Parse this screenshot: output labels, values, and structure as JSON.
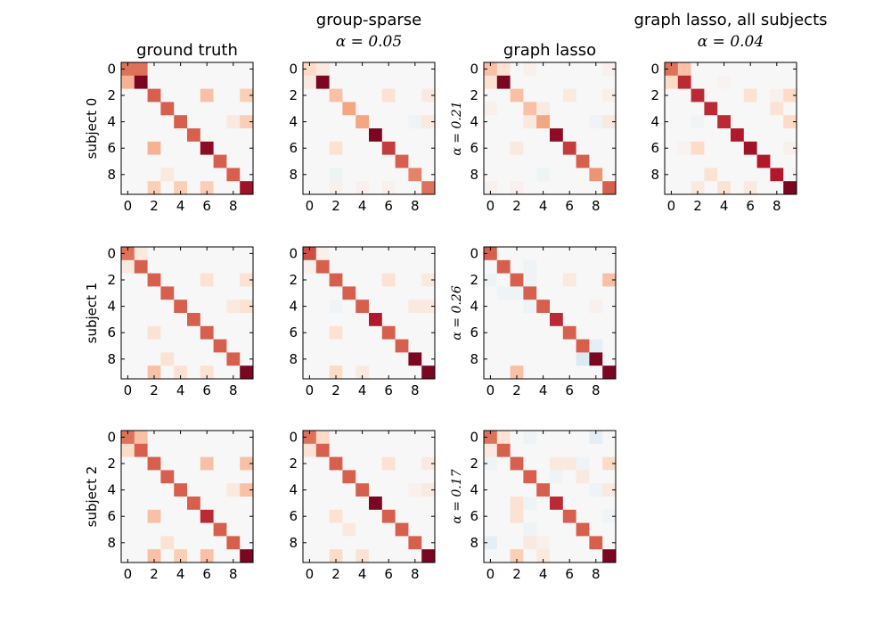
{
  "colors": {
    "neg": "#2166ac",
    "zero": "#f7f7f7",
    "pos": "#67001f"
  },
  "chart_data": [
    {
      "type": "heatmap",
      "title": "ground truth",
      "title2": "",
      "ylabel": "subject 0",
      "xticks": [
        "0",
        "2",
        "4",
        "6",
        "8"
      ],
      "yticks": [
        "0",
        "2",
        "4",
        "6",
        "8"
      ],
      "vmin": -1,
      "vmax": 1,
      "matrix": [
        [
          0.55,
          0.55,
          0,
          0,
          0,
          0,
          0,
          0,
          0,
          0
        ],
        [
          0.35,
          0.95,
          0,
          0,
          0,
          0,
          0,
          0,
          0,
          0
        ],
        [
          0,
          0,
          0.6,
          0,
          0,
          0,
          0.3,
          0,
          0,
          0.25
        ],
        [
          0,
          0,
          0,
          0.6,
          0,
          0,
          0,
          0,
          0,
          0
        ],
        [
          0,
          0,
          0,
          0,
          0.6,
          0,
          0,
          0,
          0.1,
          0.25
        ],
        [
          0,
          0,
          0,
          0,
          0,
          0.6,
          0,
          0,
          0,
          0
        ],
        [
          0,
          0,
          0.35,
          0,
          0,
          0,
          0.9,
          0,
          0,
          0
        ],
        [
          0,
          0,
          0,
          0,
          0,
          0,
          0,
          0.6,
          0,
          0
        ],
        [
          0,
          0,
          0,
          0.1,
          0,
          0,
          0,
          0,
          0.6,
          0
        ],
        [
          0,
          0,
          0.25,
          0,
          0.25,
          0,
          0.25,
          0,
          0,
          0.85
        ]
      ]
    },
    {
      "type": "heatmap",
      "title": "group-sparse",
      "title2": "α = 0.05",
      "ylabel": "",
      "xticks": [
        "0",
        "2",
        "4",
        "6",
        "8"
      ],
      "yticks": [
        "0",
        "2",
        "4",
        "6",
        "8"
      ],
      "vmin": -1,
      "vmax": 1,
      "matrix": [
        [
          0.2,
          0.1,
          0,
          0,
          0,
          0,
          0,
          0,
          0,
          0
        ],
        [
          0.1,
          0.95,
          0,
          0,
          0,
          0,
          0,
          0,
          0,
          0
        ],
        [
          0,
          0,
          0.3,
          0,
          0,
          0,
          0.15,
          0,
          0,
          0.1
        ],
        [
          0,
          0,
          0,
          0.4,
          0,
          0,
          0,
          0,
          0,
          0
        ],
        [
          0,
          0,
          0,
          0,
          0.4,
          0,
          0,
          0,
          -0.05,
          0.1
        ],
        [
          0,
          0,
          0,
          0,
          0,
          0.95,
          0,
          0,
          0,
          0
        ],
        [
          0,
          0,
          0.15,
          0,
          0,
          0,
          0.7,
          0,
          0,
          0
        ],
        [
          0,
          0,
          0,
          0,
          0,
          0,
          0,
          0.6,
          0,
          0
        ],
        [
          0,
          0,
          -0.05,
          0,
          0,
          0,
          0,
          0,
          0.5,
          0
        ],
        [
          0,
          0,
          0.05,
          0,
          0.05,
          0,
          0.05,
          0,
          0,
          0.55
        ]
      ]
    },
    {
      "type": "heatmap",
      "title": "graph lasso",
      "title2": "",
      "ylabel": "α = 0.21",
      "xticks": [
        "0",
        "2",
        "4",
        "6",
        "8"
      ],
      "yticks": [
        "0",
        "2",
        "4",
        "6",
        "8"
      ],
      "vmin": -1,
      "vmax": 1,
      "matrix": [
        [
          0.3,
          0.15,
          0,
          0.05,
          0,
          0,
          0,
          0,
          0,
          0.05
        ],
        [
          0.15,
          0.95,
          0,
          0,
          0,
          0,
          0,
          0,
          0,
          0
        ],
        [
          0,
          0,
          0.3,
          0,
          0,
          0,
          0.1,
          0,
          0,
          0.05
        ],
        [
          0.05,
          0,
          0,
          0.3,
          0.1,
          0,
          0,
          0,
          0,
          0
        ],
        [
          0,
          0,
          0,
          0.1,
          0.4,
          0,
          0,
          0,
          -0.05,
          0.1
        ],
        [
          0,
          0,
          0,
          0,
          0,
          0.9,
          0,
          0,
          0,
          0
        ],
        [
          0,
          0,
          0.1,
          0,
          0,
          0,
          0.7,
          0,
          0,
          0
        ],
        [
          0,
          0,
          0,
          0,
          0,
          0,
          0,
          0.6,
          0,
          0
        ],
        [
          0,
          0,
          0,
          0,
          -0.05,
          0,
          0,
          0,
          0.45,
          0
        ],
        [
          0.05,
          0,
          0.05,
          0,
          0,
          0,
          0,
          0,
          0,
          0.6
        ]
      ]
    },
    {
      "type": "heatmap",
      "title": "graph lasso, all subjects",
      "title2": "α = 0.04",
      "ylabel": "",
      "xticks": [
        "0",
        "2",
        "4",
        "6",
        "8"
      ],
      "yticks": [
        "0",
        "2",
        "4",
        "6",
        "8"
      ],
      "vmin": -1,
      "vmax": 1,
      "matrix": [
        [
          0.55,
          0.3,
          0,
          0,
          0,
          0,
          0,
          0,
          0,
          0
        ],
        [
          0.2,
          0.75,
          0,
          0,
          0.03,
          0,
          0,
          0,
          0,
          0
        ],
        [
          0,
          0,
          0.75,
          0,
          0,
          0,
          0.15,
          0,
          0.05,
          0.2
        ],
        [
          0,
          0,
          0,
          0.75,
          0,
          0,
          0,
          0,
          0.15,
          0
        ],
        [
          0,
          0,
          -0.03,
          0,
          0.75,
          0,
          0,
          0,
          0,
          0.2
        ],
        [
          0,
          0,
          0,
          0,
          0,
          0.8,
          0,
          0,
          0,
          0
        ],
        [
          0,
          0.03,
          0.2,
          0,
          0,
          0,
          0.85,
          0,
          0,
          0.05
        ],
        [
          0,
          0,
          0,
          0,
          0,
          0,
          0,
          0.8,
          0,
          0
        ],
        [
          0,
          0,
          0,
          0.15,
          0,
          0,
          0,
          0,
          0.8,
          0
        ],
        [
          0,
          0,
          0.1,
          0,
          0.15,
          0,
          0.1,
          0,
          0,
          0.95
        ]
      ]
    },
    {
      "type": "heatmap",
      "title": "",
      "title2": "",
      "ylabel": "subject 1",
      "xticks": [
        "0",
        "2",
        "4",
        "6",
        "8"
      ],
      "yticks": [
        "0",
        "2",
        "4",
        "6",
        "8"
      ],
      "vmin": -1,
      "vmax": 1,
      "matrix": [
        [
          0.55,
          0.1,
          0,
          0,
          0,
          0,
          0,
          0,
          0,
          0
        ],
        [
          0.1,
          0.6,
          0,
          0,
          0,
          0,
          0,
          0,
          0,
          0
        ],
        [
          0,
          0,
          0.6,
          0,
          0,
          0,
          0.15,
          0,
          0,
          0.15
        ],
        [
          0,
          0,
          0,
          0.6,
          0,
          0,
          0,
          0,
          0,
          0
        ],
        [
          0,
          0,
          0,
          0,
          0.6,
          0,
          0,
          0,
          0.1,
          0.15
        ],
        [
          0,
          0,
          0,
          0,
          0,
          0.6,
          0,
          0,
          0,
          0
        ],
        [
          0,
          0,
          0.15,
          0,
          0,
          0,
          0.6,
          0,
          0,
          0
        ],
        [
          0,
          0,
          0,
          0,
          0,
          0,
          0,
          0.6,
          0,
          0
        ],
        [
          0,
          0,
          0,
          0.15,
          0,
          0,
          0,
          0,
          0.6,
          0
        ],
        [
          0,
          0,
          0.3,
          0,
          0.15,
          0,
          0.15,
          0,
          0,
          0.95
        ]
      ]
    },
    {
      "type": "heatmap",
      "title": "",
      "title2": "",
      "ylabel": "",
      "xticks": [
        "0",
        "2",
        "4",
        "6",
        "8"
      ],
      "yticks": [
        "0",
        "2",
        "4",
        "6",
        "8"
      ],
      "vmin": -1,
      "vmax": 1,
      "matrix": [
        [
          0.65,
          0.05,
          0,
          0,
          0,
          0,
          0,
          0,
          0,
          0
        ],
        [
          0.05,
          0.6,
          0,
          0,
          0,
          0,
          0,
          0,
          0,
          0
        ],
        [
          0,
          0,
          0.6,
          0,
          0,
          0,
          0.15,
          0,
          0,
          0.1
        ],
        [
          0,
          0,
          0,
          0.6,
          0,
          0,
          0,
          0,
          0,
          0
        ],
        [
          0,
          0,
          -0.03,
          0,
          0.6,
          0,
          0,
          0,
          0.1,
          0.1
        ],
        [
          0,
          0,
          0,
          0,
          0,
          0.8,
          0,
          0,
          0,
          0
        ],
        [
          0,
          0,
          0.15,
          0,
          0,
          0,
          0.6,
          0,
          0,
          0
        ],
        [
          0,
          0,
          0,
          0,
          0,
          0,
          0,
          0.6,
          0,
          0
        ],
        [
          0,
          0,
          0,
          0,
          0,
          0,
          0,
          0,
          0.95,
          0
        ],
        [
          0,
          0,
          0.2,
          0,
          0.1,
          0,
          0,
          0,
          0,
          0.95
        ]
      ]
    },
    {
      "type": "heatmap",
      "title": "",
      "title2": "",
      "ylabel": "α = 0.26",
      "xticks": [
        "0",
        "2",
        "4",
        "6",
        "8"
      ],
      "yticks": [
        "0",
        "2",
        "4",
        "6",
        "8"
      ],
      "vmin": -1,
      "vmax": 1,
      "matrix": [
        [
          0.6,
          0,
          0,
          0,
          0,
          0,
          0,
          0,
          0,
          0
        ],
        [
          0,
          0.6,
          0,
          -0.05,
          0,
          0,
          0,
          0,
          0,
          0
        ],
        [
          -0.05,
          0,
          0.6,
          -0.05,
          0,
          0,
          0.1,
          0,
          0,
          0.3
        ],
        [
          0,
          -0.05,
          -0.05,
          0.6,
          0,
          0,
          0,
          0,
          0,
          0
        ],
        [
          0,
          0,
          0,
          -0.05,
          0.6,
          0,
          0,
          0,
          0.05,
          0
        ],
        [
          0,
          0,
          0,
          0,
          0,
          0.75,
          0,
          0,
          0,
          0
        ],
        [
          0,
          0,
          0,
          0,
          0,
          0,
          0.6,
          0,
          0,
          0
        ],
        [
          0,
          0,
          0,
          0,
          0,
          0,
          0,
          0.6,
          -0.1,
          0
        ],
        [
          0,
          0,
          0,
          0,
          0,
          0,
          0,
          -0.15,
          0.95,
          0
        ],
        [
          0,
          0,
          0.3,
          0,
          0,
          0,
          0,
          0,
          0,
          0.95
        ]
      ]
    },
    {
      "type": "heatmap",
      "title": "",
      "title2": "",
      "ylabel": "subject 2",
      "xticks": [
        "0",
        "2",
        "4",
        "6",
        "8"
      ],
      "yticks": [
        "0",
        "2",
        "4",
        "6",
        "8"
      ],
      "vmin": -1,
      "vmax": 1,
      "matrix": [
        [
          0.55,
          0.3,
          0,
          0,
          0,
          0,
          0,
          0,
          0,
          0
        ],
        [
          0.2,
          0.6,
          0,
          0,
          0,
          0,
          0,
          0,
          0,
          0
        ],
        [
          0,
          0,
          0.6,
          0,
          0,
          0,
          0.3,
          0,
          0,
          0.3
        ],
        [
          0,
          0,
          0,
          0.6,
          0,
          0,
          0,
          0,
          0,
          0
        ],
        [
          0,
          0,
          0,
          0,
          0.6,
          0,
          0,
          0,
          0.1,
          0.3
        ],
        [
          0,
          0,
          0,
          0,
          0,
          0.6,
          0,
          0,
          0,
          0
        ],
        [
          0,
          0,
          0.3,
          0,
          0,
          0,
          0.75,
          0,
          0,
          0
        ],
        [
          0,
          0,
          0,
          0,
          0,
          0,
          0,
          0.6,
          0,
          0
        ],
        [
          0,
          0,
          0,
          0.15,
          0,
          0,
          0,
          0,
          0.6,
          0
        ],
        [
          0,
          0,
          0.3,
          0,
          0.25,
          0,
          0.3,
          0,
          0,
          0.95
        ]
      ]
    },
    {
      "type": "heatmap",
      "title": "",
      "title2": "",
      "ylabel": "",
      "xticks": [
        "0",
        "2",
        "4",
        "6",
        "8"
      ],
      "yticks": [
        "0",
        "2",
        "4",
        "6",
        "8"
      ],
      "vmin": -1,
      "vmax": 1,
      "matrix": [
        [
          0.55,
          0.2,
          0,
          0,
          0,
          0,
          0,
          0,
          0,
          0
        ],
        [
          0.15,
          0.6,
          0,
          0,
          0,
          0,
          0,
          0,
          0,
          0
        ],
        [
          0,
          0,
          0.6,
          0,
          0,
          0,
          0.15,
          0,
          0,
          0.1
        ],
        [
          0,
          0,
          0,
          0.6,
          0,
          0,
          0,
          0,
          0,
          0
        ],
        [
          0,
          0,
          0,
          0,
          0.6,
          0,
          0,
          0,
          0.05,
          0.1
        ],
        [
          0,
          0,
          0,
          0,
          0,
          0.95,
          0,
          0,
          0,
          0
        ],
        [
          0,
          0,
          0.15,
          0,
          0,
          0,
          0.6,
          0,
          0,
          0
        ],
        [
          0,
          0,
          0,
          0.1,
          0,
          0,
          0,
          0.6,
          0,
          0
        ],
        [
          0,
          0,
          0,
          0,
          0,
          0,
          0,
          0,
          0.6,
          0
        ],
        [
          0,
          0,
          0.2,
          0,
          0.15,
          0,
          0,
          0,
          0,
          0.95
        ]
      ]
    },
    {
      "type": "heatmap",
      "title": "",
      "title2": "",
      "ylabel": "α = 0.17",
      "xticks": [
        "0",
        "2",
        "4",
        "6",
        "8"
      ],
      "yticks": [
        "0",
        "2",
        "4",
        "6",
        "8"
      ],
      "vmin": -1,
      "vmax": 1,
      "matrix": [
        [
          0.55,
          0.15,
          0,
          -0.05,
          0,
          0,
          0,
          0,
          -0.1,
          0
        ],
        [
          0.1,
          0.6,
          0,
          0,
          0,
          0,
          0,
          0,
          0,
          0
        ],
        [
          -0.05,
          0,
          0.6,
          0,
          0,
          0.1,
          0.1,
          -0.05,
          0,
          0.2
        ],
        [
          0,
          0,
          0,
          0.6,
          0,
          -0.05,
          0,
          0.1,
          0,
          0
        ],
        [
          0,
          0,
          0,
          0,
          0.6,
          0,
          0,
          0,
          -0.05,
          0.1
        ],
        [
          0,
          0,
          0.15,
          -0.05,
          0,
          0.75,
          0,
          0,
          0,
          0
        ],
        [
          0,
          0,
          0.15,
          0,
          0,
          0,
          0.6,
          0,
          0,
          -0.03
        ],
        [
          0,
          0,
          0,
          -0.05,
          0,
          0,
          0,
          0.6,
          0,
          0
        ],
        [
          -0.1,
          0,
          0,
          0.1,
          0.05,
          0,
          0,
          0,
          0.6,
          0
        ],
        [
          0,
          0,
          0.25,
          0,
          0.1,
          0,
          0,
          0,
          0,
          0.95
        ]
      ]
    }
  ]
}
